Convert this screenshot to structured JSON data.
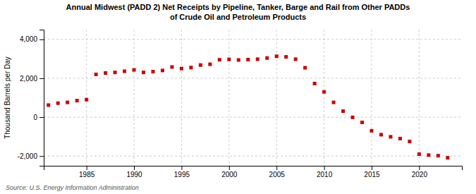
{
  "chart_data": {
    "type": "scatter",
    "title": "Annual Midwest (PADD 2) Net Receipts by Pipeline, Tanker, Barge and Rail from Other PADDs\nof Crude Oil and Petroleum Products",
    "ylabel": "Thousand Barrels per Day",
    "source": "Source: U.S. Energy Information Administration",
    "x": [
      1981,
      1982,
      1983,
      1984,
      1985,
      1986,
      1987,
      1988,
      1989,
      1990,
      1991,
      1992,
      1993,
      1994,
      1995,
      1996,
      1997,
      1998,
      1999,
      2000,
      2001,
      2002,
      2003,
      2004,
      2005,
      2006,
      2007,
      2008,
      2009,
      2010,
      2011,
      2012,
      2013,
      2014,
      2015,
      2016,
      2017,
      2018,
      2019,
      2020,
      2021,
      2022,
      2023
    ],
    "values": [
      620,
      720,
      760,
      850,
      900,
      2200,
      2270,
      2300,
      2360,
      2430,
      2300,
      2340,
      2400,
      2580,
      2500,
      2550,
      2680,
      2720,
      2950,
      2970,
      2940,
      2960,
      2980,
      3040,
      3130,
      3100,
      2980,
      2540,
      1730,
      1300,
      760,
      310,
      -10,
      -270,
      -700,
      -900,
      -1010,
      -1100,
      -1250,
      -1900,
      -1950,
      -1980,
      -2090
    ],
    "color": "#cc0000",
    "marker": "square",
    "xlim": [
      1980.5,
      2024.5
    ],
    "xticks": [
      1985,
      1990,
      1995,
      2000,
      2005,
      2010,
      2015,
      2020
    ],
    "ylim": [
      -2500,
      4500
    ],
    "yticks": [
      {
        "value": -2000,
        "label": "-2,000"
      },
      0,
      {
        "value": 2000,
        "label": "2,000"
      },
      {
        "value": 4000,
        "label": "4,000"
      }
    ],
    "grid": true
  }
}
